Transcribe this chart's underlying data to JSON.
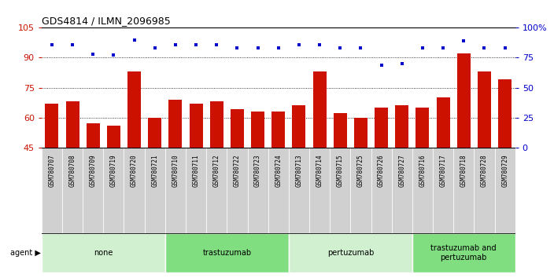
{
  "title": "GDS4814 / ILMN_2096985",
  "samples": [
    "GSM780707",
    "GSM780708",
    "GSM780709",
    "GSM780719",
    "GSM780720",
    "GSM780721",
    "GSM780710",
    "GSM780711",
    "GSM780712",
    "GSM780722",
    "GSM780723",
    "GSM780724",
    "GSM780713",
    "GSM780714",
    "GSM780715",
    "GSM780725",
    "GSM780726",
    "GSM780727",
    "GSM780716",
    "GSM780717",
    "GSM780718",
    "GSM780728",
    "GSM780729"
  ],
  "counts": [
    67,
    68,
    57,
    56,
    83,
    60,
    69,
    67,
    68,
    64,
    63,
    63,
    66,
    83,
    62,
    60,
    65,
    66,
    65,
    70,
    92,
    83,
    79
  ],
  "percentile_ranks": [
    86,
    86,
    78,
    77,
    90,
    83,
    86,
    86,
    86,
    83,
    83,
    83,
    86,
    86,
    83,
    83,
    69,
    70,
    83,
    83,
    89,
    83,
    83
  ],
  "groups": [
    {
      "label": "none",
      "start": 0,
      "end": 6,
      "color": "#d0f0d0"
    },
    {
      "label": "trastuzumab",
      "start": 6,
      "end": 12,
      "color": "#80dd80"
    },
    {
      "label": "pertuzumab",
      "start": 12,
      "end": 18,
      "color": "#d0f0d0"
    },
    {
      "label": "trastuzumab and\npertuzumab",
      "start": 18,
      "end": 23,
      "color": "#80dd80"
    }
  ],
  "ylim_left": [
    45,
    105
  ],
  "ylim_right": [
    0,
    100
  ],
  "yticks_left": [
    45,
    60,
    75,
    90,
    105
  ],
  "yticks_right": [
    0,
    25,
    50,
    75,
    100
  ],
  "bar_color": "#cc1100",
  "dot_color": "#0000cc",
  "background_color": "#ffffff",
  "tick_label_bg": "#d0d0d0",
  "agent_label": "agent"
}
